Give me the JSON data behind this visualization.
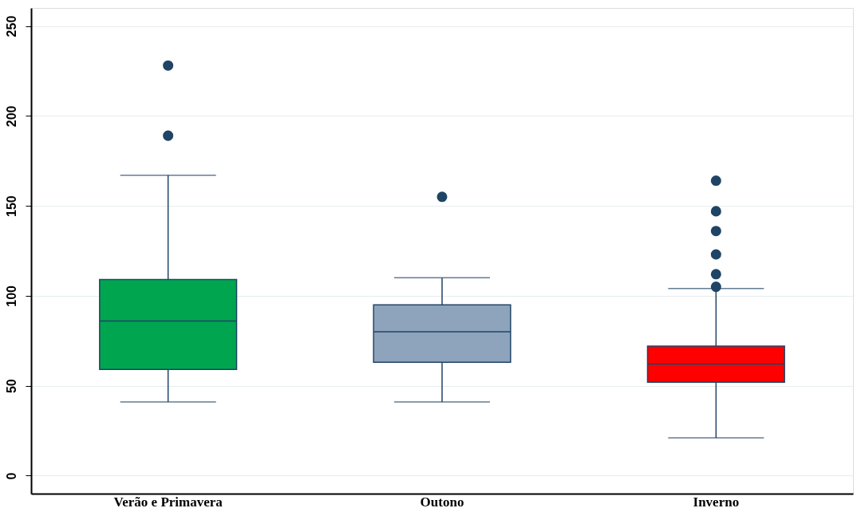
{
  "chart_data": {
    "type": "box",
    "categories": [
      "Verão e Primavera",
      "Outono",
      "Inverno"
    ],
    "boxes": [
      {
        "low": 41,
        "q1": 59,
        "median": 86,
        "q3": 109,
        "high": 167,
        "outliers": [
          228,
          189
        ]
      },
      {
        "low": 41,
        "q1": 63,
        "median": 80,
        "q3": 95,
        "high": 110,
        "outliers": [
          155
        ]
      },
      {
        "low": 21,
        "q1": 52,
        "median": 62,
        "q3": 72,
        "high": 104,
        "outliers": [
          164,
          147,
          136,
          123,
          112,
          105
        ]
      }
    ],
    "colors": [
      "#00a64f",
      "#8ea4bc",
      "#ff0000"
    ],
    "ylim": [
      -10,
      260
    ],
    "yticks": [
      0,
      50,
      100,
      150,
      200,
      250
    ],
    "grid": "y"
  }
}
